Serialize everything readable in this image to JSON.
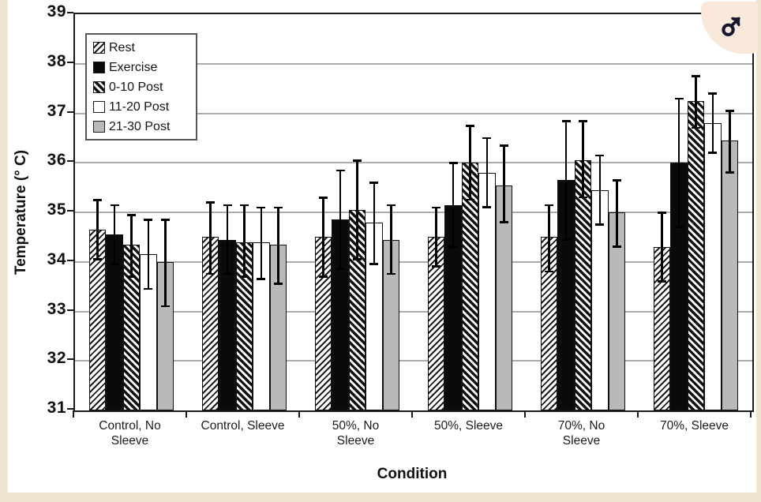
{
  "figure": {
    "male_symbol": "♂",
    "background_color": "#f2e4d3",
    "badge_background": "#f9e9db",
    "badge_glyph_color": "#15152d"
  },
  "colors": {
    "bar_gray": "#b9b9b9",
    "bar_black": "#0a0a0a",
    "bar_white": "#ffffff",
    "gridline": "#ababab",
    "axis": "#1a1a1a"
  },
  "chart_data": {
    "type": "bar",
    "title": "",
    "xlabel": "Condition",
    "ylabel": "Temperature (° C)",
    "ylim": [
      31,
      39
    ],
    "yticks": [
      31,
      32,
      33,
      34,
      35,
      36,
      37,
      38,
      39
    ],
    "grid": true,
    "legend_position": "upper-left-inside",
    "categories": [
      "Control, No Sleeve",
      "Control, Sleeve",
      "50%, No Sleeve",
      "50%, Sleeve",
      "70%, No Sleeve",
      "70%, Sleeve"
    ],
    "series": [
      {
        "name": "Rest",
        "pattern": "diagonal-hatch-light",
        "values": [
          34.65,
          34.5,
          34.5,
          34.5,
          34.5,
          34.3
        ],
        "err_hi": [
          35.25,
          35.2,
          35.3,
          35.1,
          35.15,
          35.0
        ],
        "err_lo": [
          34.05,
          33.75,
          33.7,
          33.9,
          33.8,
          33.6
        ]
      },
      {
        "name": "Exercise",
        "pattern": "solid-black",
        "values": [
          34.55,
          34.45,
          34.85,
          35.15,
          35.65,
          36.0
        ],
        "err_hi": [
          35.15,
          35.15,
          35.85,
          36.0,
          36.85,
          37.3
        ],
        "err_lo": [
          33.95,
          33.75,
          33.85,
          34.3,
          34.45,
          34.7
        ]
      },
      {
        "name": "0-10 Post",
        "pattern": "diagonal-hatch-heavy",
        "values": [
          34.35,
          34.4,
          35.05,
          36.0,
          36.05,
          37.25
        ],
        "err_hi": [
          34.95,
          35.15,
          36.05,
          36.75,
          36.85,
          37.75
        ],
        "err_lo": [
          33.7,
          33.7,
          34.05,
          35.25,
          35.3,
          36.7
        ]
      },
      {
        "name": "11-20 Post",
        "pattern": "white",
        "values": [
          34.15,
          34.4,
          34.8,
          35.8,
          35.45,
          36.8
        ],
        "err_hi": [
          34.85,
          35.1,
          35.6,
          36.5,
          36.15,
          37.4
        ],
        "err_lo": [
          33.45,
          33.65,
          33.95,
          35.1,
          34.75,
          36.2
        ]
      },
      {
        "name": "21-30 Post",
        "pattern": "gray",
        "values": [
          34.0,
          34.35,
          34.45,
          35.55,
          35.0,
          36.45
        ],
        "err_hi": [
          34.85,
          35.1,
          35.15,
          36.35,
          35.65,
          37.05
        ],
        "err_lo": [
          33.1,
          33.55,
          33.75,
          34.8,
          34.3,
          35.8
        ]
      }
    ]
  }
}
